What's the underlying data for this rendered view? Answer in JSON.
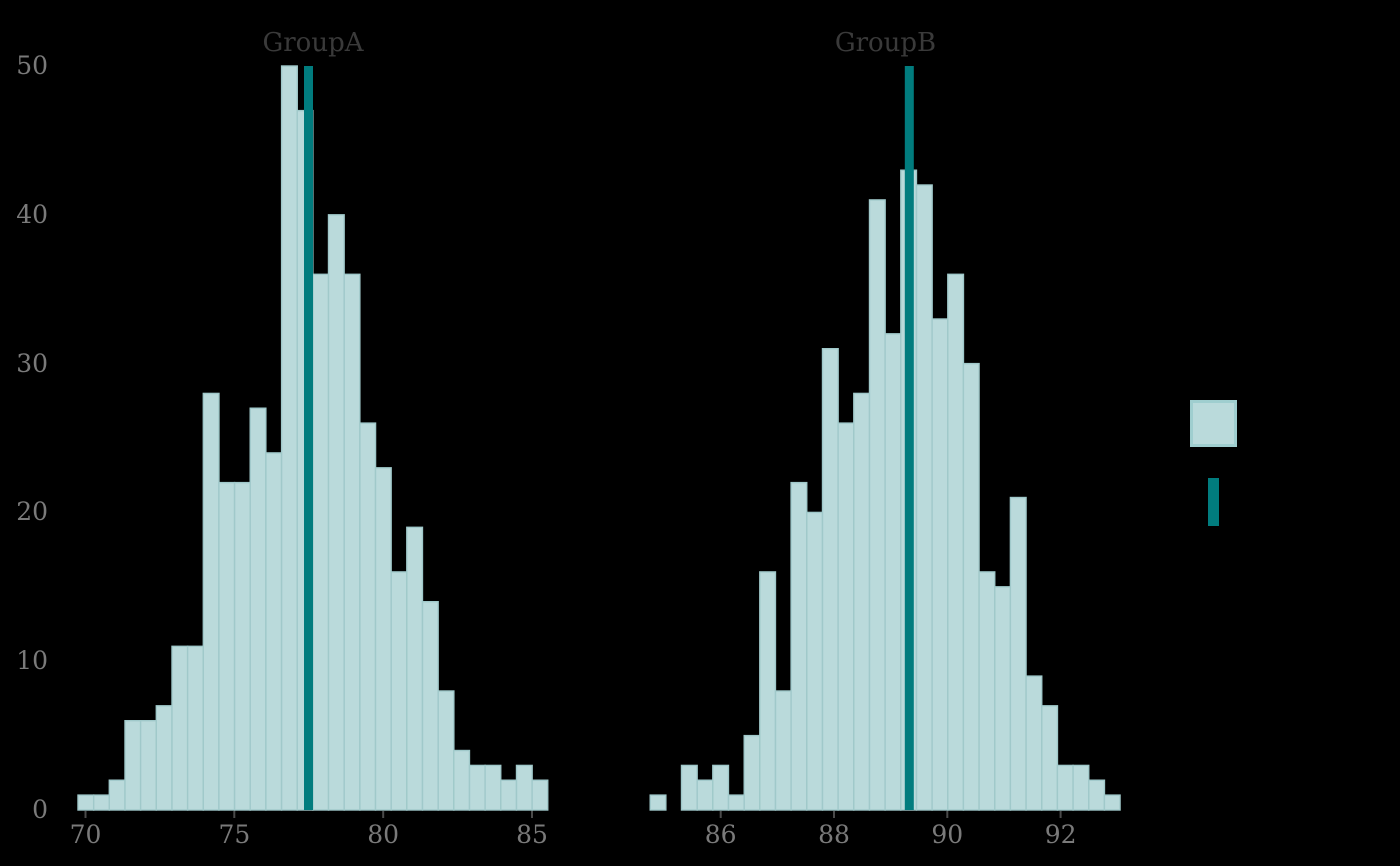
{
  "figure": {
    "kind": "faceted histogram figure (two panels side by side, shared y axis)",
    "background_color": "#000000"
  },
  "colors": {
    "bar_fill": "#badadb",
    "bar_edge": "#a0c9ca",
    "mean_line": "#017c7e",
    "title_text": "#3a3a3a",
    "tick_text": "#7a7a7a",
    "tick_mark": "#4a4a4a",
    "legend_square_border": "#9fcecf"
  },
  "chart_data": {
    "type": "bar",
    "subtype": "histogram-facets",
    "grid": false,
    "ylim": [
      0,
      50
    ],
    "y_ticks": [
      0,
      10,
      20,
      30,
      40,
      50
    ],
    "legend_position": "right-center",
    "legend": {
      "swatches": [
        {
          "name": "histogram-bars-swatch",
          "shape": "square"
        },
        {
          "name": "mean-line-swatch",
          "shape": "vertical-bar"
        }
      ]
    },
    "panels": [
      {
        "title": "GroupA",
        "x_ticks": [
          70,
          75,
          80,
          85
        ],
        "xlim": [
          69.7,
          86.0
        ],
        "bin_start": 69.748,
        "bin_width": 0.526,
        "counts": [
          1,
          1,
          2,
          6,
          6,
          7,
          11,
          11,
          28,
          22,
          22,
          27,
          24,
          50,
          47,
          36,
          40,
          36,
          26,
          23,
          16,
          19,
          14,
          8,
          4,
          3,
          3,
          2,
          3,
          2
        ],
        "n_total": 500,
        "mean_line_x": 77.49
      },
      {
        "title": "GroupB",
        "x_ticks": [
          86,
          88,
          90,
          92
        ],
        "xlim": [
          84.2,
          93.2
        ],
        "bin_start": 84.755,
        "bin_width": 0.2765,
        "counts": [
          1,
          0,
          3,
          2,
          3,
          1,
          5,
          16,
          8,
          22,
          20,
          31,
          26,
          28,
          41,
          32,
          43,
          42,
          33,
          36,
          30,
          16,
          15,
          21,
          9,
          7,
          3,
          3,
          2,
          1
        ],
        "n_total": 500,
        "mean_line_x": 89.33
      }
    ]
  }
}
